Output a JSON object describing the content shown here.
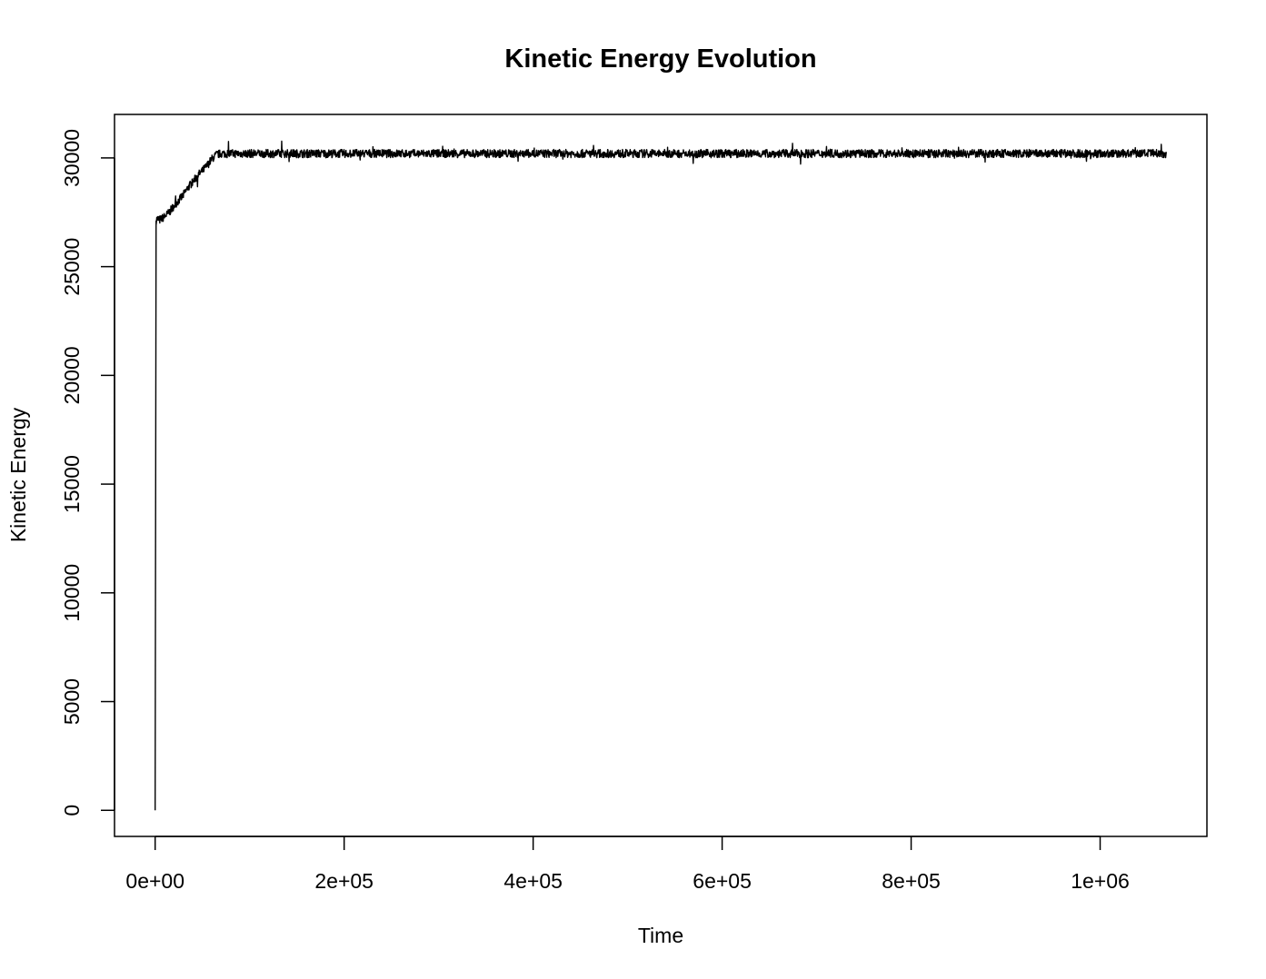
{
  "chart_data": {
    "type": "line",
    "title": "Kinetic Energy Evolution",
    "xlabel": "Time",
    "ylabel": "Kinetic Energy",
    "xlim": [
      -43000,
      1113000
    ],
    "ylim": [
      -1200,
      32000
    ],
    "x_ticks": [
      {
        "value": 0,
        "label": "0e+00"
      },
      {
        "value": 200000,
        "label": "2e+05"
      },
      {
        "value": 400000,
        "label": "4e+05"
      },
      {
        "value": 600000,
        "label": "6e+05"
      },
      {
        "value": 800000,
        "label": "8e+05"
      },
      {
        "value": 1000000,
        "label": "1e+06"
      }
    ],
    "y_ticks": [
      {
        "value": 0,
        "label": "0"
      },
      {
        "value": 5000,
        "label": "5000"
      },
      {
        "value": 10000,
        "label": "10000"
      },
      {
        "value": 15000,
        "label": "15000"
      },
      {
        "value": 20000,
        "label": "20000"
      },
      {
        "value": 25000,
        "label": "25000"
      },
      {
        "value": 30000,
        "label": "30000"
      }
    ],
    "grid": false,
    "series": [
      {
        "color": "#000000",
        "x": [
          0,
          1000,
          2000,
          5000,
          10000,
          15000,
          20000,
          25000,
          30000,
          35000,
          40000,
          45000,
          50000,
          55000,
          60000,
          65000,
          70000,
          100000,
          200000,
          300000,
          400000,
          500000,
          600000,
          700000,
          800000,
          900000,
          1000000,
          1070000
        ],
        "y": [
          0,
          27100,
          27200,
          27150,
          27300,
          27500,
          27800,
          28050,
          28300,
          28650,
          28900,
          29200,
          29400,
          29650,
          29950,
          30150,
          30200,
          30200,
          30200,
          30200,
          30200,
          30200,
          30200,
          30200,
          30200,
          30200,
          30200,
          30200
        ]
      }
    ]
  }
}
